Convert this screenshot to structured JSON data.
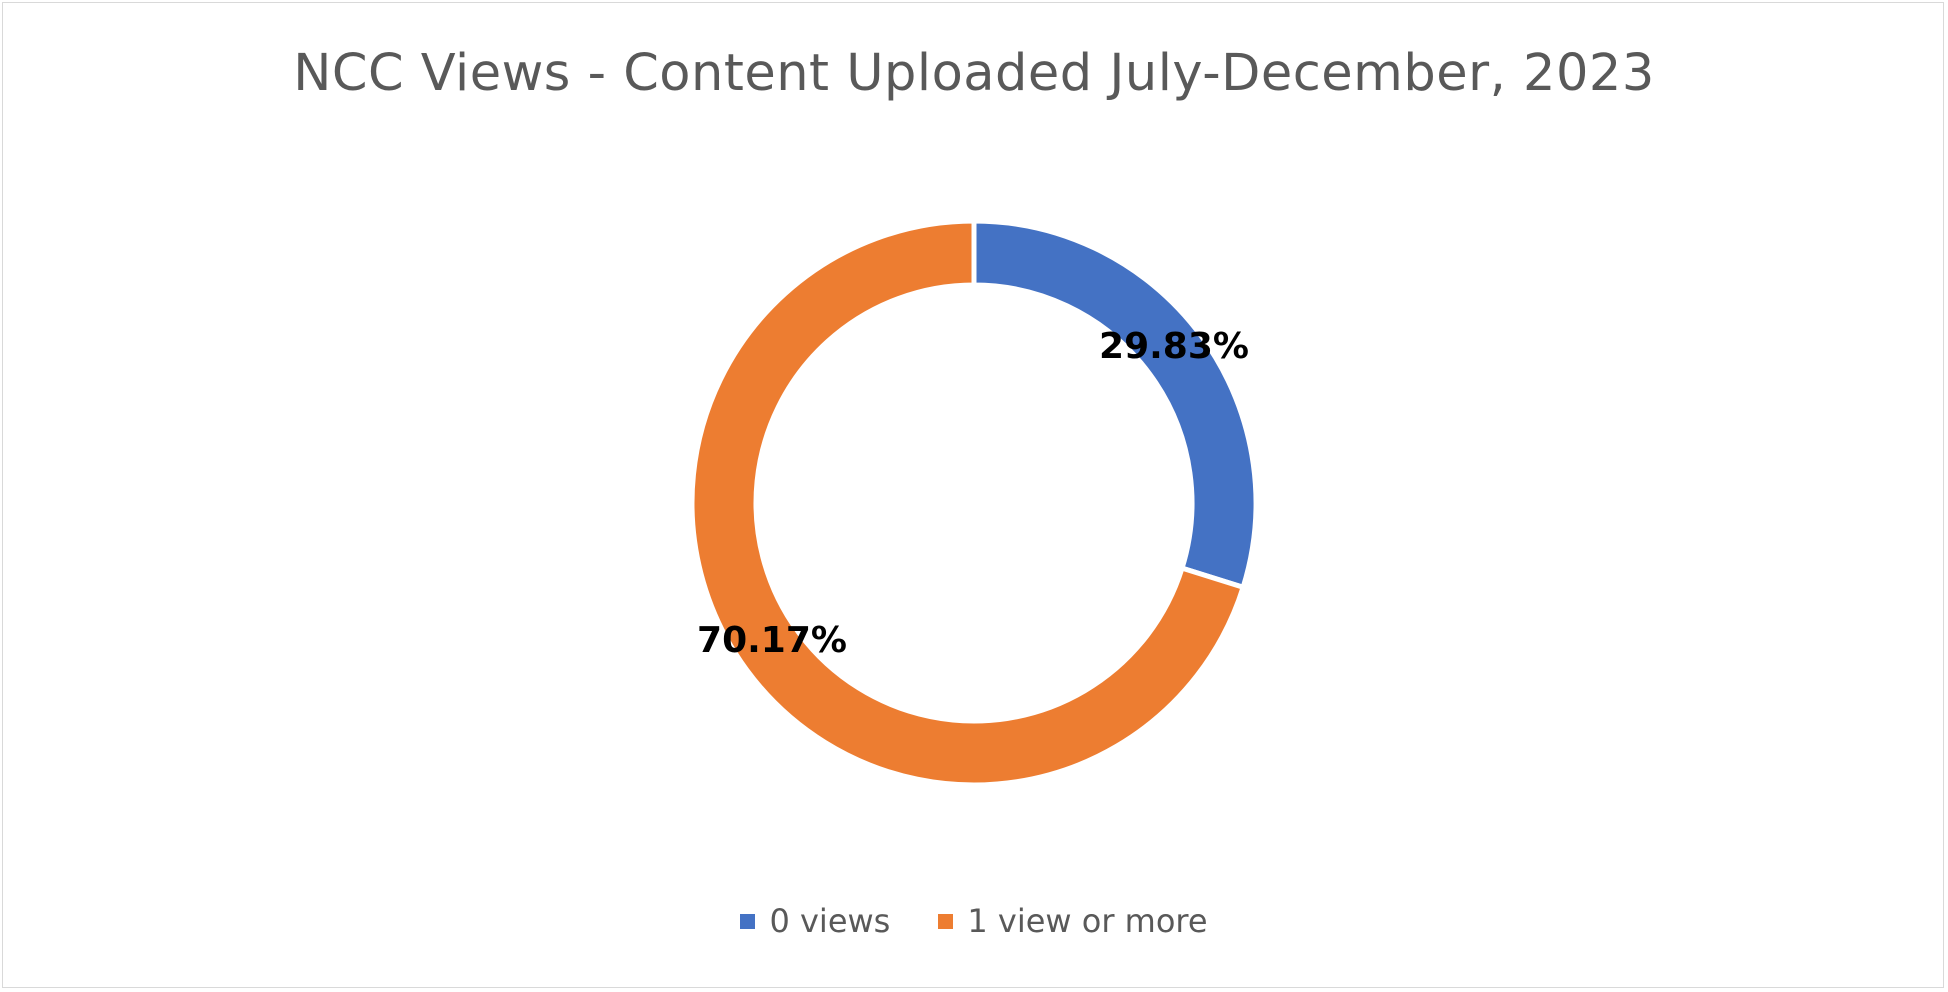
{
  "chart_data": {
    "type": "pie",
    "variant": "donut",
    "title": "NCC Views - Content Uploaded July-December, 2023",
    "series": [
      {
        "name": "0 views",
        "value": 29.83,
        "label": "29.83%",
        "color": "#4472C4"
      },
      {
        "name": "1 view or more",
        "value": 70.17,
        "label": "70.17%",
        "color": "#ED7D31"
      }
    ],
    "legend_position": "bottom",
    "start_angle": "12 o'clock, clockwise"
  }
}
